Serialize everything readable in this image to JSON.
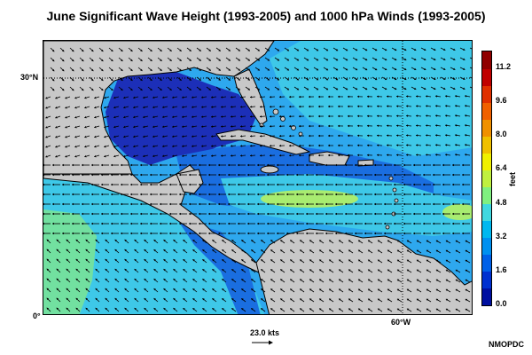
{
  "title": "June Significant Wave Height (1993-2005) and 1000 hPa Winds (1993-2005)",
  "axes": {
    "lat_top": "30°N",
    "lat_bottom": "0°",
    "lon_right": "60°W"
  },
  "colorbar": {
    "unit": "feet",
    "ticks": [
      "11.2",
      "9.6",
      "8.0",
      "6.4",
      "4.8",
      "3.2",
      "1.6",
      "0.0"
    ],
    "range": [
      0,
      12.0
    ],
    "colors": [
      "#0010a0",
      "#0030d0",
      "#0060e8",
      "#0090f0",
      "#00b8f0",
      "#40d8e0",
      "#80f080",
      "#c0f040",
      "#f0f000",
      "#f0c000",
      "#f09000",
      "#f06000",
      "#e03000",
      "#c00000",
      "#900000"
    ]
  },
  "reference_vector": {
    "label": "23.0 kts"
  },
  "credit": "NMOPDC",
  "colors": {
    "land": "#c8c8c8",
    "deep_blue": "#1c2fb8",
    "mid_blue": "#1a6ee0",
    "light_blue": "#2ea8ee",
    "cyan": "#3ec8e8",
    "green": "#72e0a0",
    "yellow_green": "#b8f060",
    "grid_line": "#000000"
  }
}
